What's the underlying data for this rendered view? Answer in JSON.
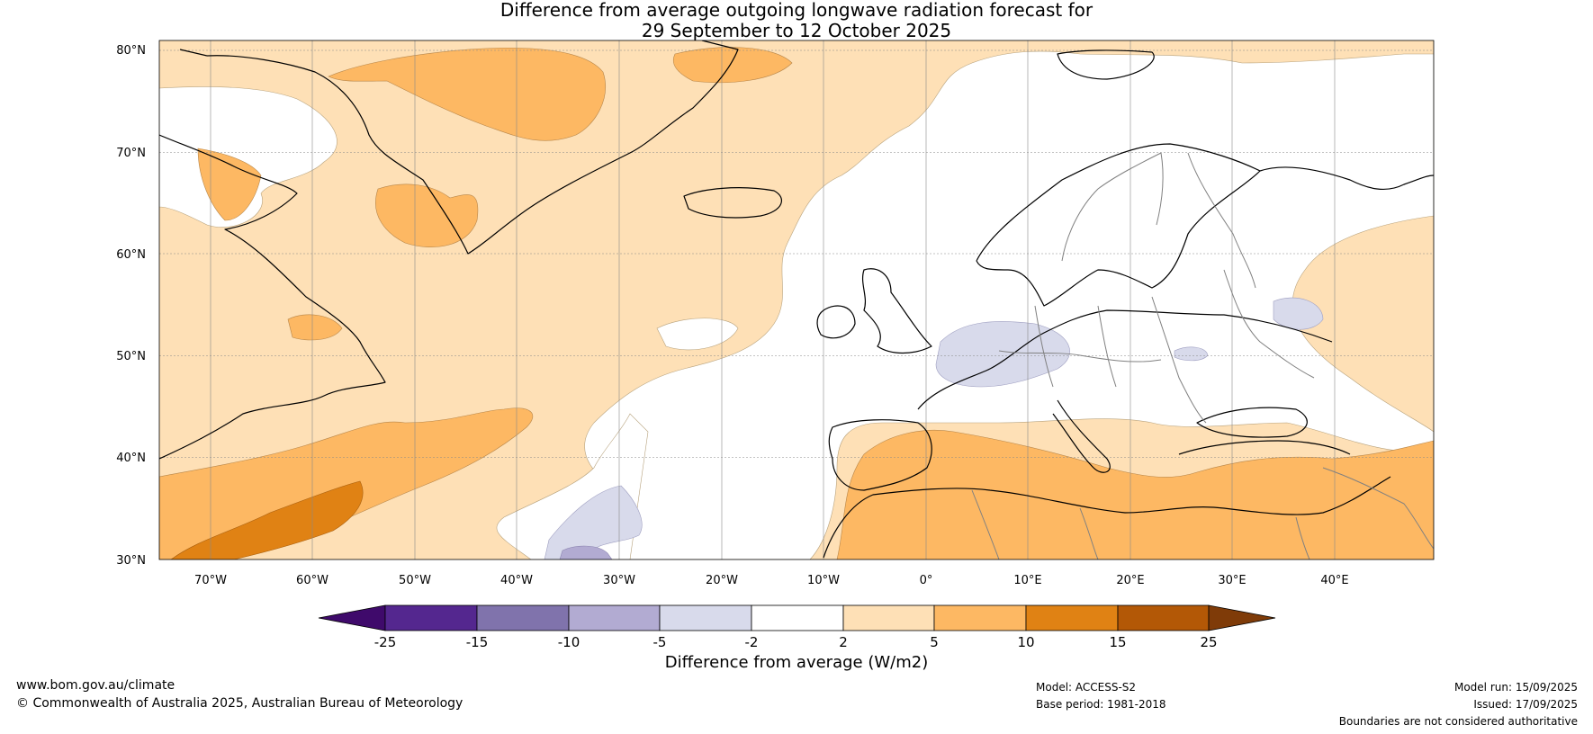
{
  "title": {
    "line1": "Difference from average outgoing longwave radiation forecast for",
    "line2": "29 September to 12 October 2025"
  },
  "map": {
    "lat_labels": [
      "80°N",
      "70°N",
      "60°N",
      "50°N",
      "40°N",
      "30°N"
    ],
    "lon_labels": [
      "70°W",
      "60°W",
      "50°W",
      "40°W",
      "30°W",
      "20°W",
      "10°W",
      "0°",
      "10°E",
      "20°E",
      "30°E",
      "40°E"
    ],
    "lat_range": [
      30,
      81
    ],
    "lon_range": [
      -75,
      50
    ]
  },
  "colorbar": {
    "title": "Difference from average (W/m2)",
    "tick_labels": [
      "-25",
      "-15",
      "-10",
      "-5",
      "-2",
      "2",
      "5",
      "10",
      "15",
      "25"
    ],
    "colors": [
      "#3f0a6b",
      "#54278f",
      "#8073ac",
      "#b2abd2",
      "#d8daeb",
      "#ffffff",
      "#fee0b6",
      "#fdb863",
      "#e08214",
      "#b35806",
      "#7f3b08"
    ]
  },
  "footer": {
    "website": "www.bom.gov.au/climate",
    "copyright": "© Commonwealth of Australia 2025, Australian Bureau of Meteorology",
    "model": "Model: ACCESS-S2",
    "base_period": "Base period: 1981-2018",
    "model_run": "Model run: 15/09/2025",
    "issued": "Issued: 17/09/2025",
    "disclaimer": "Boundaries are not considered authoritative"
  }
}
